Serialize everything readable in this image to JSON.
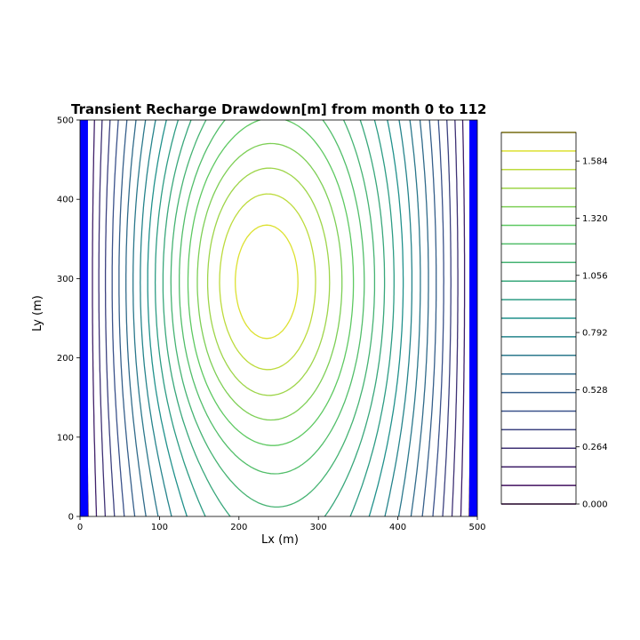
{
  "chart_data": {
    "type": "contour",
    "title": "Transient Recharge Drawdown[m] from month 0 to 112",
    "xlabel": "Lx (m)",
    "ylabel": "Ly (m)",
    "xlim": [
      0,
      500
    ],
    "ylim": [
      0,
      500
    ],
    "x_ticks": [
      0,
      100,
      200,
      300,
      400,
      500
    ],
    "y_ticks": [
      0,
      100,
      200,
      300,
      400,
      500
    ],
    "colormap": "viridis",
    "boundary_color": "#0000ff",
    "boundaries": [
      {
        "name": "left",
        "x_range": [
          0,
          10
        ]
      },
      {
        "name": "right",
        "x_range": [
          490,
          500
        ]
      }
    ],
    "center": {
      "x": 210,
      "y": 296
    },
    "peak_value": 1.716,
    "levels": [
      0.0,
      0.0858,
      0.1716,
      0.2574,
      0.3432,
      0.429,
      0.5148,
      0.6006,
      0.6864,
      0.7722,
      0.858,
      0.9438,
      1.0296,
      1.1154,
      1.2012,
      1.287,
      1.3728,
      1.4586,
      1.5444,
      1.6302,
      1.716
    ],
    "colorbar": {
      "ticks": [
        0.0,
        0.264,
        0.528,
        0.792,
        1.056,
        1.32,
        1.584
      ],
      "tick_labels": [
        "0.000",
        "0.264",
        "0.528",
        "0.792",
        "1.056",
        "1.320",
        "1.584"
      ],
      "max": 1.716
    }
  }
}
